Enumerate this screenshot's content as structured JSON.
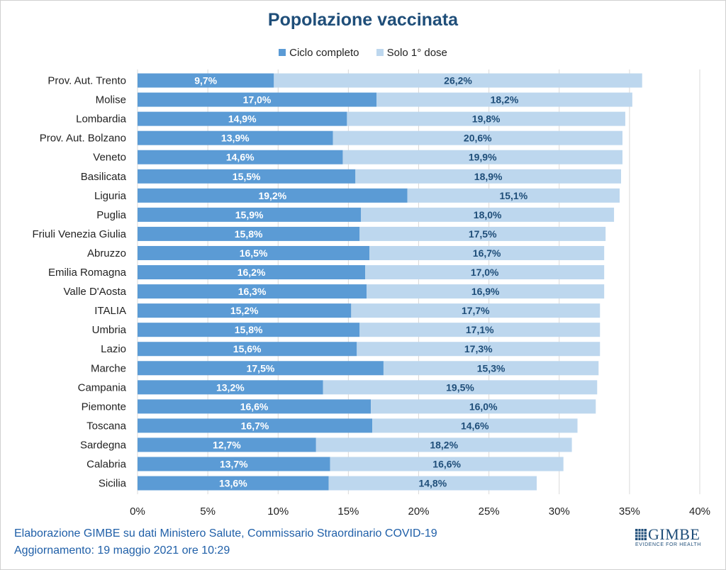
{
  "chart_data": {
    "type": "bar",
    "orientation": "horizontal",
    "stacked": true,
    "title": "Popolazione vaccinata",
    "categories": [
      "Prov. Aut. Trento",
      "Molise",
      "Lombardia",
      "Prov. Aut. Bolzano",
      "Veneto",
      "Basilicata",
      "Liguria",
      "Puglia",
      "Friuli Venezia Giulia",
      "Abruzzo",
      "Emilia Romagna",
      "Valle D'Aosta",
      "ITALIA",
      "Umbria",
      "Lazio",
      "Marche",
      "Campania",
      "Piemonte",
      "Toscana",
      "Sardegna",
      "Calabria",
      "Sicilia"
    ],
    "series": [
      {
        "name": "Ciclo completo",
        "color": "#5b9bd5",
        "label_color": "#ffffff",
        "values": [
          9.7,
          17.0,
          14.9,
          13.9,
          14.6,
          15.5,
          19.2,
          15.9,
          15.8,
          16.5,
          16.2,
          16.3,
          15.2,
          15.8,
          15.6,
          17.5,
          13.2,
          16.6,
          16.7,
          12.7,
          13.7,
          13.6
        ],
        "labels": [
          "9,7%",
          "17,0%",
          "14,9%",
          "13,9%",
          "14,6%",
          "15,5%",
          "19,2%",
          "15,9%",
          "15,8%",
          "16,5%",
          "16,2%",
          "16,3%",
          "15,2%",
          "15,8%",
          "15,6%",
          "17,5%",
          "13,2%",
          "16,6%",
          "16,7%",
          "12,7%",
          "13,7%",
          "13,6%"
        ]
      },
      {
        "name": "Solo 1° dose",
        "color": "#bdd7ee",
        "label_color": "#1f4e79",
        "values": [
          26.2,
          18.2,
          19.8,
          20.6,
          19.9,
          18.9,
          15.1,
          18.0,
          17.5,
          16.7,
          17.0,
          16.9,
          17.7,
          17.1,
          17.3,
          15.3,
          19.5,
          16.0,
          14.6,
          18.2,
          16.6,
          14.8
        ],
        "labels": [
          "26,2%",
          "18,2%",
          "19,8%",
          "20,6%",
          "19,9%",
          "18,9%",
          "15,1%",
          "18,0%",
          "17,5%",
          "16,7%",
          "17,0%",
          "16,9%",
          "17,7%",
          "17,1%",
          "17,3%",
          "15,3%",
          "19,5%",
          "16,0%",
          "14,6%",
          "18,2%",
          "16,6%",
          "14,8%"
        ]
      }
    ],
    "xlim": [
      0,
      40
    ],
    "xticks": [
      "0%",
      "5%",
      "10%",
      "15%",
      "20%",
      "25%",
      "30%",
      "35%",
      "40%"
    ],
    "xtick_values": [
      0,
      5,
      10,
      15,
      20,
      25,
      30,
      35,
      40
    ],
    "xlabel": "",
    "ylabel": "",
    "grid": true,
    "legend_position": "top-center"
  },
  "footer": {
    "line1": "Elaborazione GIMBE su dati Ministero Salute, Commissario Straordinario COVID-19",
    "line2": "Aggiornamento: 19 maggio 2021 ore 10:29"
  },
  "logo": {
    "word": "GIMBE",
    "tagline": "EVIDENCE FOR HEALTH"
  }
}
